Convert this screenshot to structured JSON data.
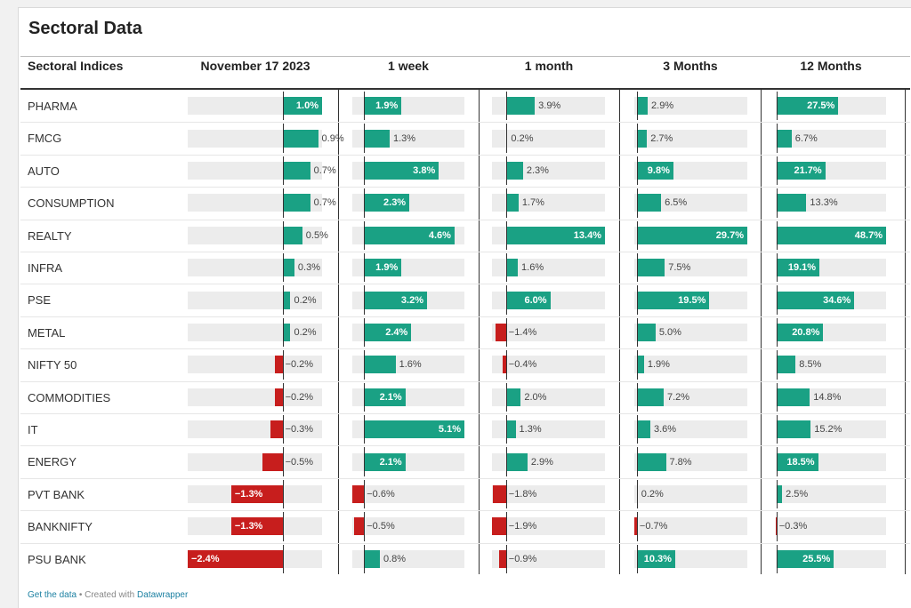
{
  "title": "Sectoral Data",
  "colors": {
    "positive": "#1aa184",
    "negative": "#c71e1d",
    "track": "#ececec"
  },
  "footer": {
    "get_data": "Get the data",
    "separator": " • Created with ",
    "tool": "Datawrapper"
  },
  "chart_data": {
    "type": "table",
    "row_header": "Sectoral Indices",
    "columns": [
      {
        "label": "November 17 2023",
        "min": -2.4,
        "max": 1.0
      },
      {
        "label": "1 week",
        "min": -0.6,
        "max": 5.1
      },
      {
        "label": "1 month",
        "min": -1.9,
        "max": 13.4
      },
      {
        "label": "3 Months",
        "min": -0.7,
        "max": 29.7
      },
      {
        "label": "12 Months",
        "min": -0.3,
        "max": 48.7
      }
    ],
    "rows": [
      {
        "name": "PHARMA",
        "values": [
          1.0,
          1.9,
          3.9,
          2.9,
          27.5
        ]
      },
      {
        "name": "FMCG",
        "values": [
          0.9,
          1.3,
          0.2,
          2.7,
          6.7
        ]
      },
      {
        "name": "AUTO",
        "values": [
          0.7,
          3.8,
          2.3,
          9.8,
          21.7
        ]
      },
      {
        "name": "CONSUMPTION",
        "values": [
          0.7,
          2.3,
          1.7,
          6.5,
          13.3
        ]
      },
      {
        "name": "REALTY",
        "values": [
          0.5,
          4.6,
          13.4,
          29.7,
          48.7
        ]
      },
      {
        "name": "INFRA",
        "values": [
          0.3,
          1.9,
          1.6,
          7.5,
          19.1
        ]
      },
      {
        "name": "PSE",
        "values": [
          0.2,
          3.2,
          6.0,
          19.5,
          34.6
        ]
      },
      {
        "name": "METAL",
        "values": [
          0.2,
          2.4,
          -1.4,
          5.0,
          20.8
        ]
      },
      {
        "name": "NIFTY 50",
        "values": [
          -0.2,
          1.6,
          -0.4,
          1.9,
          8.5
        ]
      },
      {
        "name": "COMMODITIES",
        "values": [
          -0.2,
          2.1,
          2.0,
          7.2,
          14.8
        ]
      },
      {
        "name": "IT",
        "values": [
          -0.3,
          5.1,
          1.3,
          3.6,
          15.2
        ]
      },
      {
        "name": "ENERGY",
        "values": [
          -0.5,
          2.1,
          2.9,
          7.8,
          18.5
        ]
      },
      {
        "name": "PVT BANK",
        "values": [
          -1.3,
          -0.6,
          -1.8,
          0.2,
          2.5
        ]
      },
      {
        "name": "BANKNIFTY",
        "values": [
          -1.3,
          -0.5,
          -1.9,
          -0.7,
          -0.3
        ]
      },
      {
        "name": "PSU BANK",
        "values": [
          -2.4,
          0.8,
          -0.9,
          10.3,
          25.5
        ]
      }
    ]
  }
}
